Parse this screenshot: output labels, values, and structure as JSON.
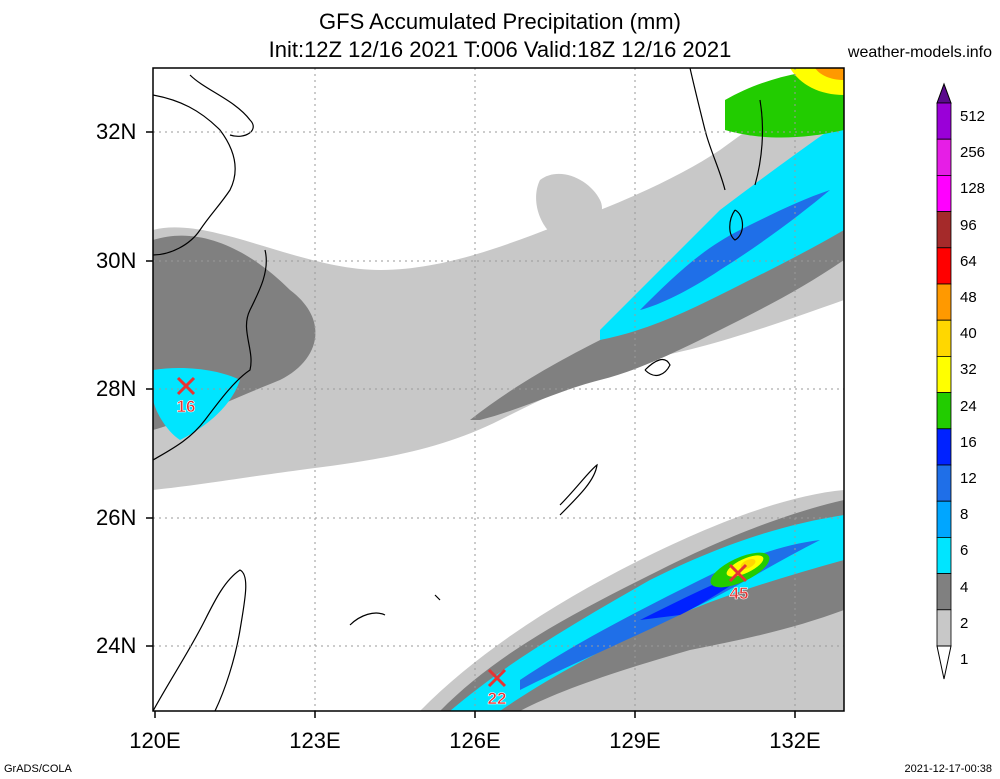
{
  "title": {
    "line1": "GFS Accumulated Precipitation (mm)",
    "line2": "Init:12Z 12/16 2021 T:006 Valid:18Z 12/16 2021"
  },
  "site": "weather-models.info",
  "footer": {
    "left": "GrADS/COLA",
    "right": "2021-12-17-00:38"
  },
  "axes": {
    "lat_labels": [
      "32N",
      "30N",
      "28N",
      "26N",
      "24N"
    ],
    "lon_labels": [
      "120E",
      "123E",
      "126E",
      "129E",
      "132E"
    ]
  },
  "colorbar": {
    "levels": [
      "512",
      "256",
      "128",
      "96",
      "64",
      "48",
      "40",
      "32",
      "24",
      "16",
      "12",
      "8",
      "6",
      "4",
      "2",
      "1"
    ],
    "colors": [
      "#5a0a8c",
      "#9a00d8",
      "#e61ee6",
      "#ff00ff",
      "#a52a2a",
      "#ff0000",
      "#ff9900",
      "#ffd700",
      "#ffff00",
      "#22cc00",
      "#0022ff",
      "#1f6fe8",
      "#00a6ff",
      "#00e5ff",
      "#808080",
      "#c8c8c8"
    ]
  },
  "markers": [
    {
      "label": "16"
    },
    {
      "label": "22"
    },
    {
      "label": "45"
    }
  ]
}
